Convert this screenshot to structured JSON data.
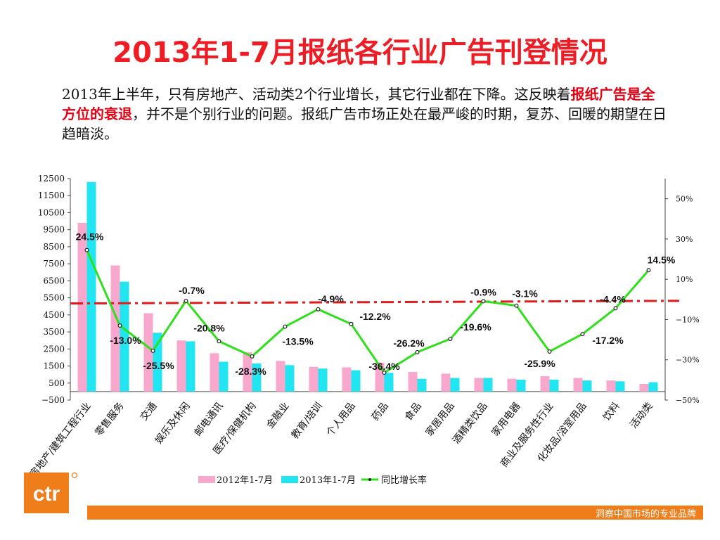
{
  "slide": {
    "title": "2013年1-7月报纸各行业广告刊登情况",
    "paragraph": {
      "p1": "2013年上半年，只有房地产、活动类2个行业增长，其它行业都在下降。这反映着",
      "highlight": "报纸广告是全方位的衰退",
      "p2": "，并不是个别行业的问题。报纸广告市场正处在最严峻的时期，复苏、回暖的期望在日趋暗淡。"
    },
    "footer_text": "洞察中国市场的专业品牌",
    "logo_text": "ctr"
  },
  "colors": {
    "title": "#ee1c25",
    "series_2012": "#f7a8cc",
    "series_2013": "#22e5f2",
    "growth_line": "#2ee01a",
    "trend_line": "#e01b1b",
    "footer": "#ef7d1a",
    "logo": "#ef7d1a"
  },
  "chart_data": {
    "type": "bar",
    "categories": [
      "房地产/建筑工程行业",
      "零售服务",
      "交通",
      "娱乐及休闲",
      "邮电通讯",
      "医疗/保健机构",
      "金融业",
      "教育/培训",
      "个人用品",
      "药品",
      "食品",
      "家居用品",
      "酒精类饮品",
      "家用电器",
      "商业及服务性行业",
      "化妆品/浴室用品",
      "饮料",
      "活动类"
    ],
    "series": [
      {
        "name": "2012年1-7月",
        "axis": "left",
        "values": [
          9900,
          7400,
          4600,
          3000,
          2250,
          2300,
          1800,
          1450,
          1420,
          1700,
          1150,
          1050,
          800,
          750,
          900,
          800,
          650,
          450
        ]
      },
      {
        "name": "2013年1-7月",
        "axis": "left",
        "values": [
          12300,
          6450,
          3450,
          2950,
          1750,
          1650,
          1550,
          1350,
          1250,
          1100,
          750,
          800,
          800,
          700,
          700,
          650,
          600,
          550
        ]
      },
      {
        "name": "同比增长率",
        "type": "line",
        "axis": "right",
        "values": [
          24.5,
          -13.0,
          -25.5,
          -0.7,
          -20.8,
          -28.3,
          -13.5,
          -4.9,
          -12.2,
          -36.4,
          -26.2,
          -19.6,
          -0.9,
          -3.1,
          -25.9,
          -17.2,
          -4.4,
          14.5
        ]
      }
    ],
    "data_labels": [
      "24.5%",
      "-13.0%",
      "-25.5%",
      "-0.7%",
      "-20.8%",
      "-28.3%",
      "-13.5%",
      "-4.9%",
      "-12.2%",
      "-36.4%",
      "-26.2%",
      "-19.6%",
      "-0.9%",
      "-3.1%",
      "-25.9%",
      "-17.2%",
      "-4.4%",
      "14.5%"
    ],
    "trend_line": {
      "axis": "right",
      "from": -2.0,
      "to": -0.7
    },
    "left_axis": {
      "ylim": [
        -500,
        12500
      ],
      "ticks": [
        "12500",
        "11500",
        "10500",
        "9500",
        "8500",
        "7500",
        "6500",
        "5500",
        "4500",
        "3500",
        "2500",
        "1500",
        "500",
        "−500"
      ]
    },
    "right_axis": {
      "ylim": [
        -50,
        60
      ],
      "ticks": [
        "50%",
        "30%",
        "10%",
        "−10%",
        "−30%",
        "−50%"
      ]
    },
    "legend": {
      "position": "bottom",
      "labels": [
        "2012年1-7月",
        "2013年1-7月",
        "同比增长率"
      ]
    },
    "grid": false
  }
}
